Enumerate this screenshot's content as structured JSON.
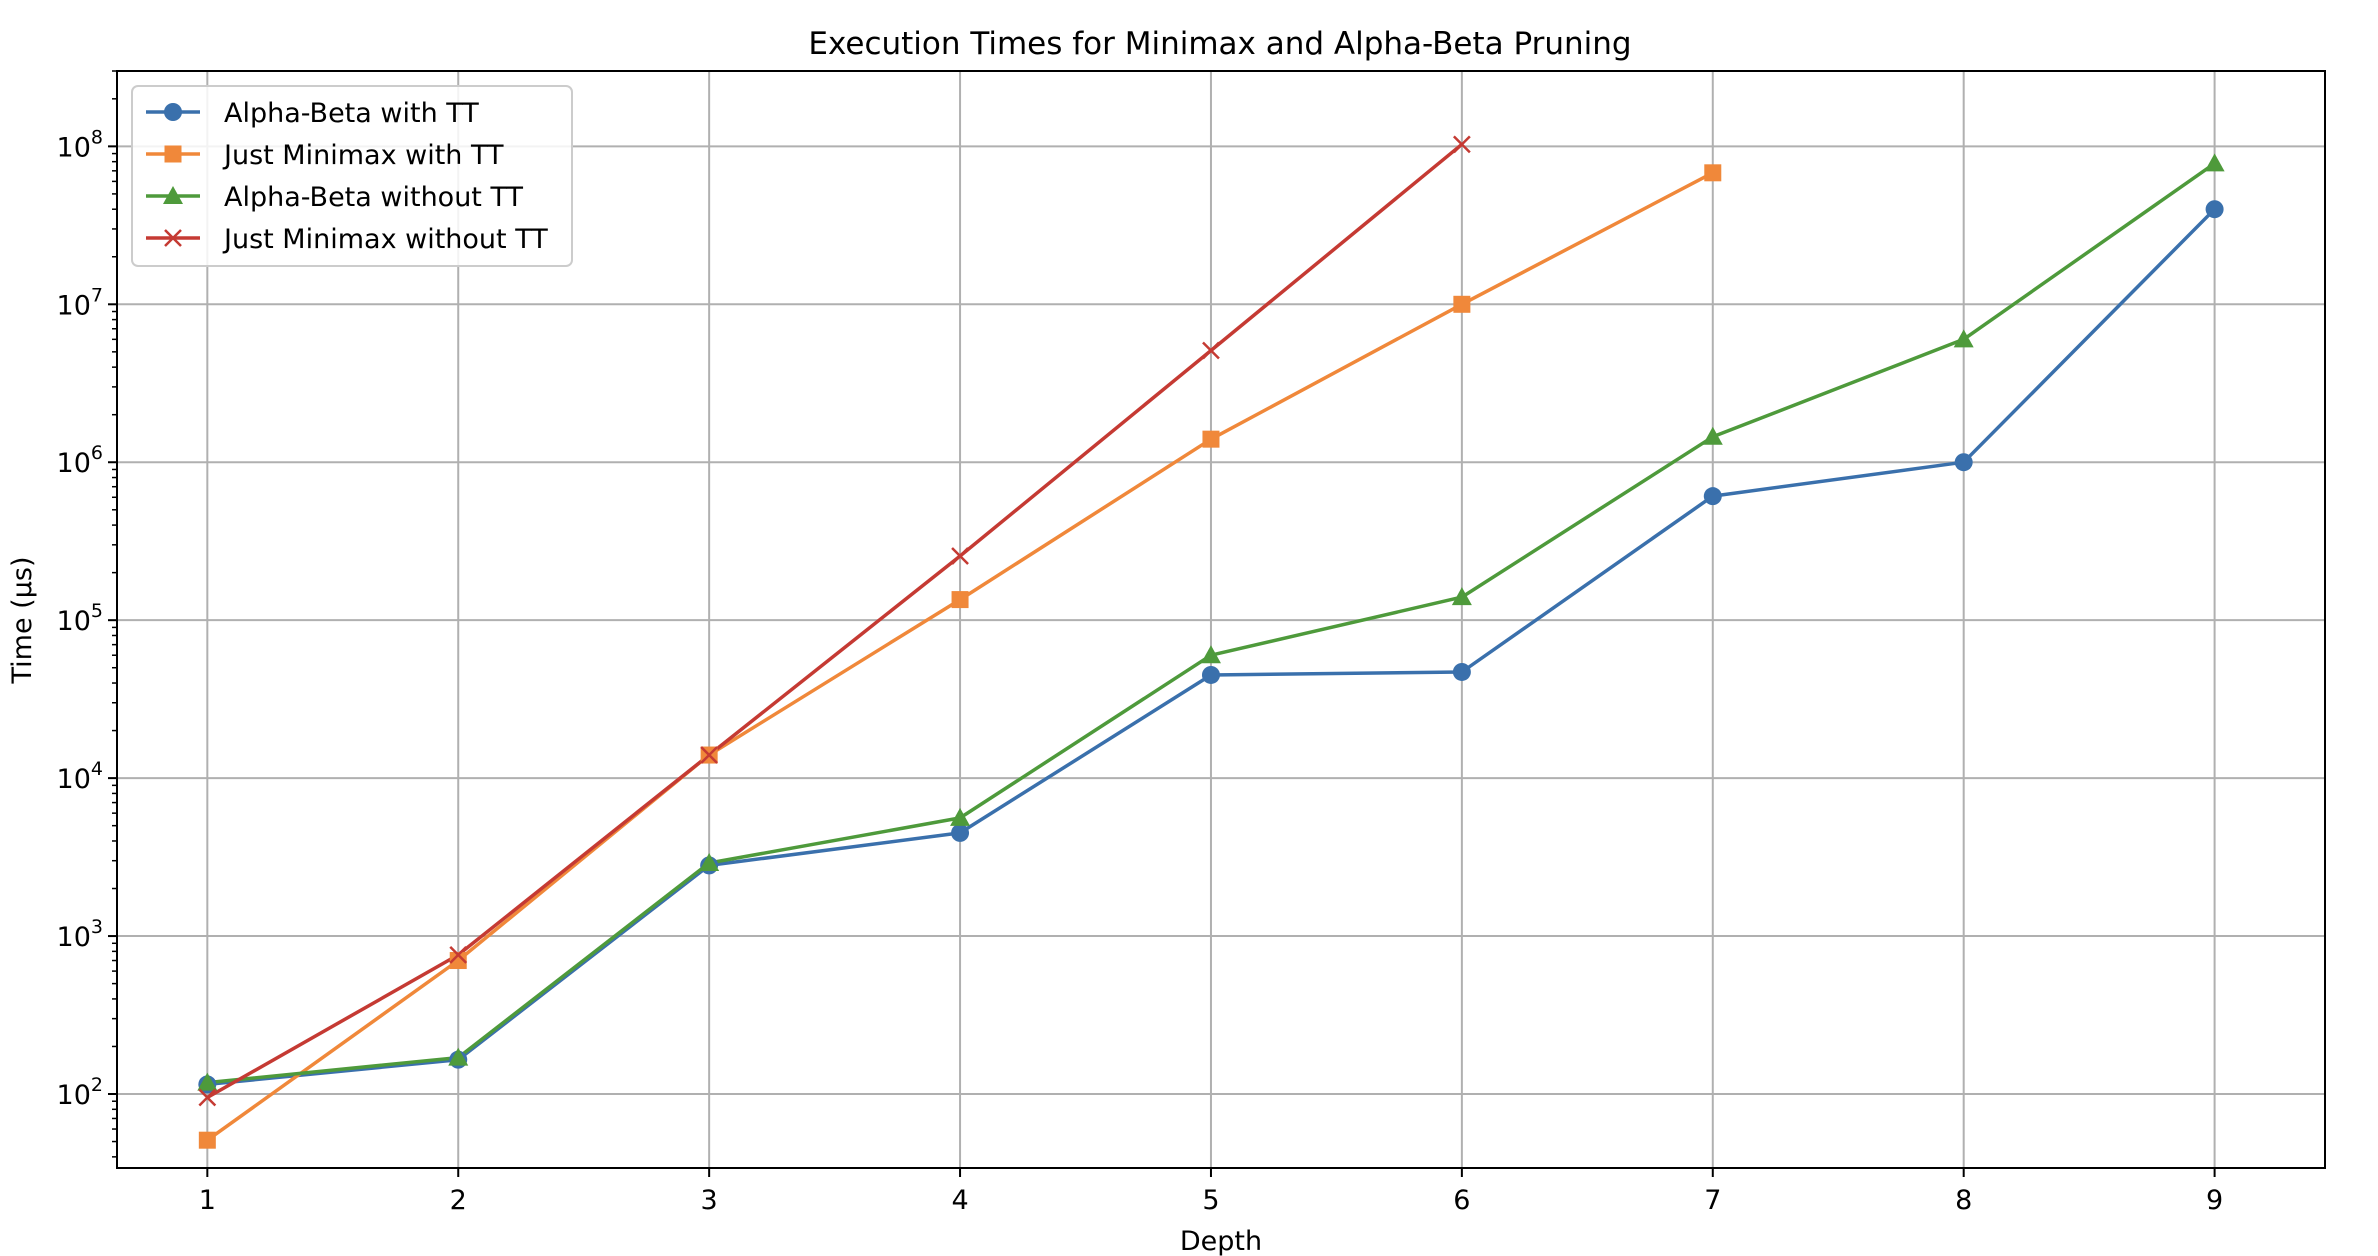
{
  "chart_data": {
    "type": "line",
    "title": "Execution Times for Minimax and Alpha-Beta Pruning",
    "xlabel": "Depth",
    "ylabel": "Time (µs)",
    "x_scale": "linear",
    "y_scale": "log",
    "xlim": [
      0.64,
      9.44
    ],
    "ylim": [
      34,
      300000000
    ],
    "x_ticks": [
      1,
      2,
      3,
      4,
      5,
      6,
      7,
      8,
      9
    ],
    "y_ticks": [
      {
        "value": 100,
        "base": "10",
        "exp": "2"
      },
      {
        "value": 1000,
        "base": "10",
        "exp": "3"
      },
      {
        "value": 10000,
        "base": "10",
        "exp": "4"
      },
      {
        "value": 100000,
        "base": "10",
        "exp": "5"
      },
      {
        "value": 1000000,
        "base": "10",
        "exp": "6"
      },
      {
        "value": 10000000,
        "base": "10",
        "exp": "7"
      },
      {
        "value": 100000000,
        "base": "10",
        "exp": "8"
      }
    ],
    "grid": true,
    "legend_position": "top-left",
    "series": [
      {
        "name": "Alpha-Beta with TT",
        "color": "#3a70ac",
        "marker": "circle",
        "x": [
          1,
          2,
          3,
          4,
          5,
          6,
          7,
          8,
          9
        ],
        "y": [
          115,
          165,
          2800,
          4500,
          45000,
          47000,
          610000,
          1000000,
          40000000
        ]
      },
      {
        "name": "Just Minimax with TT",
        "color": "#f0883a",
        "marker": "square",
        "x": [
          1,
          2,
          3,
          4,
          5,
          6,
          7
        ],
        "y": [
          51,
          700,
          14000,
          135000,
          1400000,
          10000000,
          68000000
        ]
      },
      {
        "name": "Alpha-Beta without TT",
        "color": "#4e9a3b",
        "marker": "triangle",
        "x": [
          1,
          2,
          3,
          4,
          5,
          6,
          7,
          8,
          9
        ],
        "y": [
          118,
          170,
          2900,
          5600,
          60000,
          140000,
          1450000,
          6000000,
          78000000
        ]
      },
      {
        "name": "Just Minimax without TT",
        "color": "#c53a33",
        "marker": "x",
        "x": [
          1,
          2,
          3,
          4,
          5,
          6
        ],
        "y": [
          95,
          760,
          14000,
          255000,
          5100000,
          103000000
        ]
      }
    ]
  }
}
